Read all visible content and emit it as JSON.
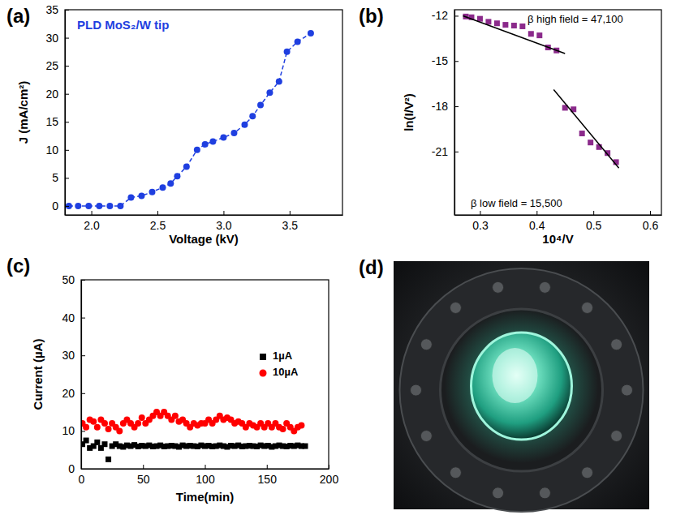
{
  "chart_data": [
    {
      "type": "line",
      "label": "(a)",
      "xlabel": "Voltage (kV)",
      "ylabel": "J (mA/cm²)",
      "annotations": [
        "PLD MoS₂/W tip"
      ],
      "xlim": [
        1.8,
        3.9
      ],
      "ylim": [
        -1.6,
        35
      ],
      "xticks": [
        {
          "value": 2,
          "label": "2.0"
        },
        2.5,
        {
          "value": 3,
          "label": "3.0"
        },
        3.5
      ],
      "yticks": [
        0,
        5,
        10,
        15,
        20,
        25,
        30,
        35
      ],
      "series": [
        {
          "color": "#1f3fe0",
          "marker": "circle",
          "line_style": "dashed",
          "x": [
            1.83,
            1.9,
            1.98,
            2.06,
            2.14,
            2.22,
            2.3,
            2.38,
            2.46,
            2.54,
            2.6,
            2.65,
            2.72,
            2.8,
            2.86,
            2.92,
            3.0,
            3.08,
            3.16,
            3.22,
            3.28,
            3.35,
            3.42,
            3.48,
            3.56,
            3.66
          ],
          "values": [
            0,
            0,
            0,
            0,
            0,
            0,
            1.5,
            1.8,
            2.5,
            3.3,
            4,
            5.3,
            7,
            10,
            11,
            11.5,
            12.2,
            13,
            14.5,
            16,
            18,
            20.2,
            22.2,
            27.5,
            29.3,
            30.8
          ]
        }
      ]
    },
    {
      "type": "scatter",
      "label": "(b)",
      "xlabel": "10⁴/V",
      "ylabel": "ln(I/V²)",
      "annotations": [
        "β high field = 47,100",
        "β low field = 15,500"
      ],
      "xlim": [
        0.255,
        0.62
      ],
      "ylim": [
        -25.2,
        -11.6
      ],
      "xticks": [
        0.3,
        0.4,
        0.5,
        0.6
      ],
      "yticks": [
        -12,
        -15,
        -18,
        -21
      ],
      "series": [
        {
          "type": "scatter",
          "color": "#8b2a8b",
          "marker": "square",
          "x": [
            0.275,
            0.285,
            0.3,
            0.315,
            0.33,
            0.345,
            0.36,
            0.375,
            0.39,
            0.405,
            0.42,
            0.435,
            0.45,
            0.465,
            0.48,
            0.495,
            0.51,
            0.525,
            0.54
          ],
          "values": [
            -12.05,
            -12.1,
            -12.2,
            -12.4,
            -12.5,
            -12.6,
            -12.65,
            -12.7,
            -13.2,
            -13.3,
            -14.1,
            -14.3,
            -18.1,
            -18.2,
            -19.8,
            -20.4,
            -20.7,
            -21.1,
            -21.7
          ]
        },
        {
          "type": "line",
          "color": "#000000",
          "line_style": "solid",
          "x": [
            0.27,
            0.45
          ],
          "values": [
            -12.0,
            -14.5
          ]
        },
        {
          "type": "line",
          "color": "#000000",
          "line_style": "solid",
          "x": [
            0.43,
            0.545
          ],
          "values": [
            -16.9,
            -22.1
          ]
        }
      ]
    },
    {
      "type": "scatter",
      "label": "(c)",
      "xlabel": "Time(min)",
      "ylabel": "Current (µA)",
      "legend": "right",
      "xlim": [
        0,
        200
      ],
      "ylim": [
        0,
        50
      ],
      "xticks": [
        0,
        50,
        100,
        150,
        200
      ],
      "yticks": [
        0,
        10,
        20,
        30,
        40,
        50
      ],
      "series": [
        {
          "name": "1µA",
          "color": "#000000",
          "marker": "square",
          "x": [
            1,
            4,
            7,
            10,
            13,
            16,
            19,
            22,
            25,
            28,
            31,
            34,
            37,
            40,
            43,
            46,
            49,
            52,
            55,
            58,
            61,
            64,
            67,
            70,
            73,
            76,
            79,
            82,
            85,
            88,
            91,
            94,
            97,
            100,
            103,
            106,
            109,
            112,
            115,
            118,
            121,
            124,
            127,
            130,
            133,
            136,
            139,
            142,
            145,
            148,
            151,
            154,
            157,
            160,
            163,
            166,
            169,
            172,
            175,
            178,
            181
          ],
          "values": [
            6.5,
            7.5,
            5.5,
            6,
            7,
            5.5,
            6.5,
            2.5,
            6,
            6.5,
            6,
            5.8,
            6.2,
            6,
            6.3,
            5.9,
            6.1,
            6,
            6.2,
            5.9,
            6,
            6.2,
            5.9,
            6,
            6.1,
            6,
            5.8,
            6.2,
            6,
            6.1,
            6,
            5.9,
            6.2,
            6,
            6.1,
            5.9,
            6,
            6.2,
            6,
            5.8,
            6.1,
            6,
            6.2,
            5.9,
            6,
            6.1,
            6,
            5.9,
            6.2,
            6,
            6.1,
            5.8,
            6,
            6.2,
            6,
            5.9,
            6.1,
            6,
            6.2,
            6,
            6
          ]
        },
        {
          "name": "10µA",
          "color": "#ff0000",
          "marker": "circle",
          "x": [
            1,
            4,
            7,
            10,
            13,
            16,
            19,
            22,
            25,
            28,
            31,
            34,
            37,
            40,
            43,
            46,
            49,
            52,
            55,
            58,
            61,
            64,
            67,
            70,
            73,
            76,
            79,
            82,
            85,
            88,
            91,
            94,
            97,
            100,
            103,
            106,
            109,
            112,
            115,
            118,
            121,
            124,
            127,
            130,
            133,
            136,
            139,
            142,
            145,
            148,
            151,
            154,
            157,
            160,
            163,
            166,
            169,
            172,
            175,
            178,
            181
          ],
          "values": [
            12,
            11,
            13,
            12.5,
            11,
            13,
            12,
            10.5,
            12,
            11,
            10,
            12,
            13,
            12,
            11,
            12,
            13.5,
            12,
            13,
            14,
            15,
            14,
            15,
            14,
            13,
            14,
            12.5,
            13,
            12,
            11,
            12,
            11.5,
            12,
            12,
            13,
            12,
            13,
            14,
            13,
            13.5,
            13,
            12,
            12.5,
            12,
            11,
            12,
            11.5,
            11,
            12,
            11,
            12,
            11,
            12,
            11,
            10.5,
            12,
            11,
            10,
            11,
            11.5,
            null
          ]
        }
      ]
    }
  ],
  "image": {
    "label": "(d)"
  }
}
